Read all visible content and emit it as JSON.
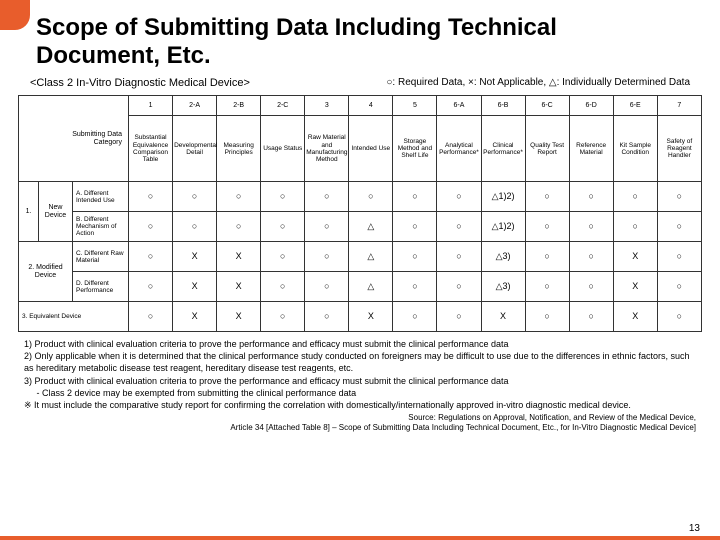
{
  "title": "Scope of Submitting Data Including Technical Document, Etc.",
  "subtitle": "<Class 2 In-Vitro Diagnostic Medical Device>",
  "legend": "○: Required Data, ×: Not Applicable, △: Individually Determined Data",
  "columns": [
    "1",
    "2-A",
    "2-B",
    "2-C",
    "3",
    "4",
    "5",
    "6-A",
    "6-B",
    "6-C",
    "6-D",
    "6-E",
    "7"
  ],
  "corner_label": "Submitting Data\nCategory",
  "data_heads": [
    "Substantial Equivalence Comparison Table",
    "Developmental Detail",
    "Measuring Principles",
    "Usage Status",
    "Raw Material and Manufacturing Method",
    "Intended Use",
    "Storage Method and Shelf Life",
    "Analytical Performance*",
    "Clinical Performance*",
    "Quality Test Report",
    "Reference Material",
    "Kit Sample Condition",
    "Safety of Reagent Handler"
  ],
  "rows": [
    {
      "group": "1.",
      "grouplabel": "New Device",
      "label": "A. Different Intended Use",
      "cells": [
        "○",
        "○",
        "○",
        "○",
        "○",
        "○",
        "○",
        "○",
        "△1)2)",
        "○",
        "○",
        "○",
        "○"
      ]
    },
    {
      "label": "B. Different Mechanism of Action",
      "cells": [
        "○",
        "○",
        "○",
        "○",
        "○",
        "△",
        "○",
        "○",
        "△1)2)",
        "○",
        "○",
        "○",
        "○"
      ]
    },
    {
      "group": "2. Modified Device",
      "label": "C. Different Raw Material",
      "cells": [
        "○",
        "X",
        "X",
        "○",
        "○",
        "△",
        "○",
        "○",
        "△3)",
        "○",
        "○",
        "X",
        "○"
      ]
    },
    {
      "label": "D. Different Performance",
      "cells": [
        "○",
        "X",
        "X",
        "○",
        "○",
        "△",
        "○",
        "○",
        "△3)",
        "○",
        "○",
        "X",
        "○"
      ]
    },
    {
      "full": "3. Equivalent Device",
      "cells": [
        "○",
        "X",
        "X",
        "○",
        "○",
        "X",
        "○",
        "○",
        "X",
        "○",
        "○",
        "X",
        "○"
      ]
    }
  ],
  "footnotes": [
    "1) Product with clinical evaluation criteria to prove the performance and efficacy must submit the clinical performance data",
    "2) Only applicable when it is determined that the clinical performance study conducted on foreigners may be difficult to use due to the differences in ethnic factors, such as hereditary metabolic disease test reagent, hereditary disease test reagents, etc.",
    "3) Product with clinical evaluation criteria to prove the performance and efficacy must submit the clinical performance data",
    "     - Class 2 device may be exempted from submitting the clinical performance data",
    "※ It must include the comparative study report for confirming the correlation with domestically/internationally approved in-vitro diagnostic medical device."
  ],
  "source_lines": [
    "Source: Regulations on Approval, Notification, and Review of the Medical Device,",
    "Article 34 [Attached Table 8] – Scope of Submitting Data Including Technical Document, Etc., for In-Vitro Diagnostic Medical Device]"
  ],
  "pagenum": "13"
}
